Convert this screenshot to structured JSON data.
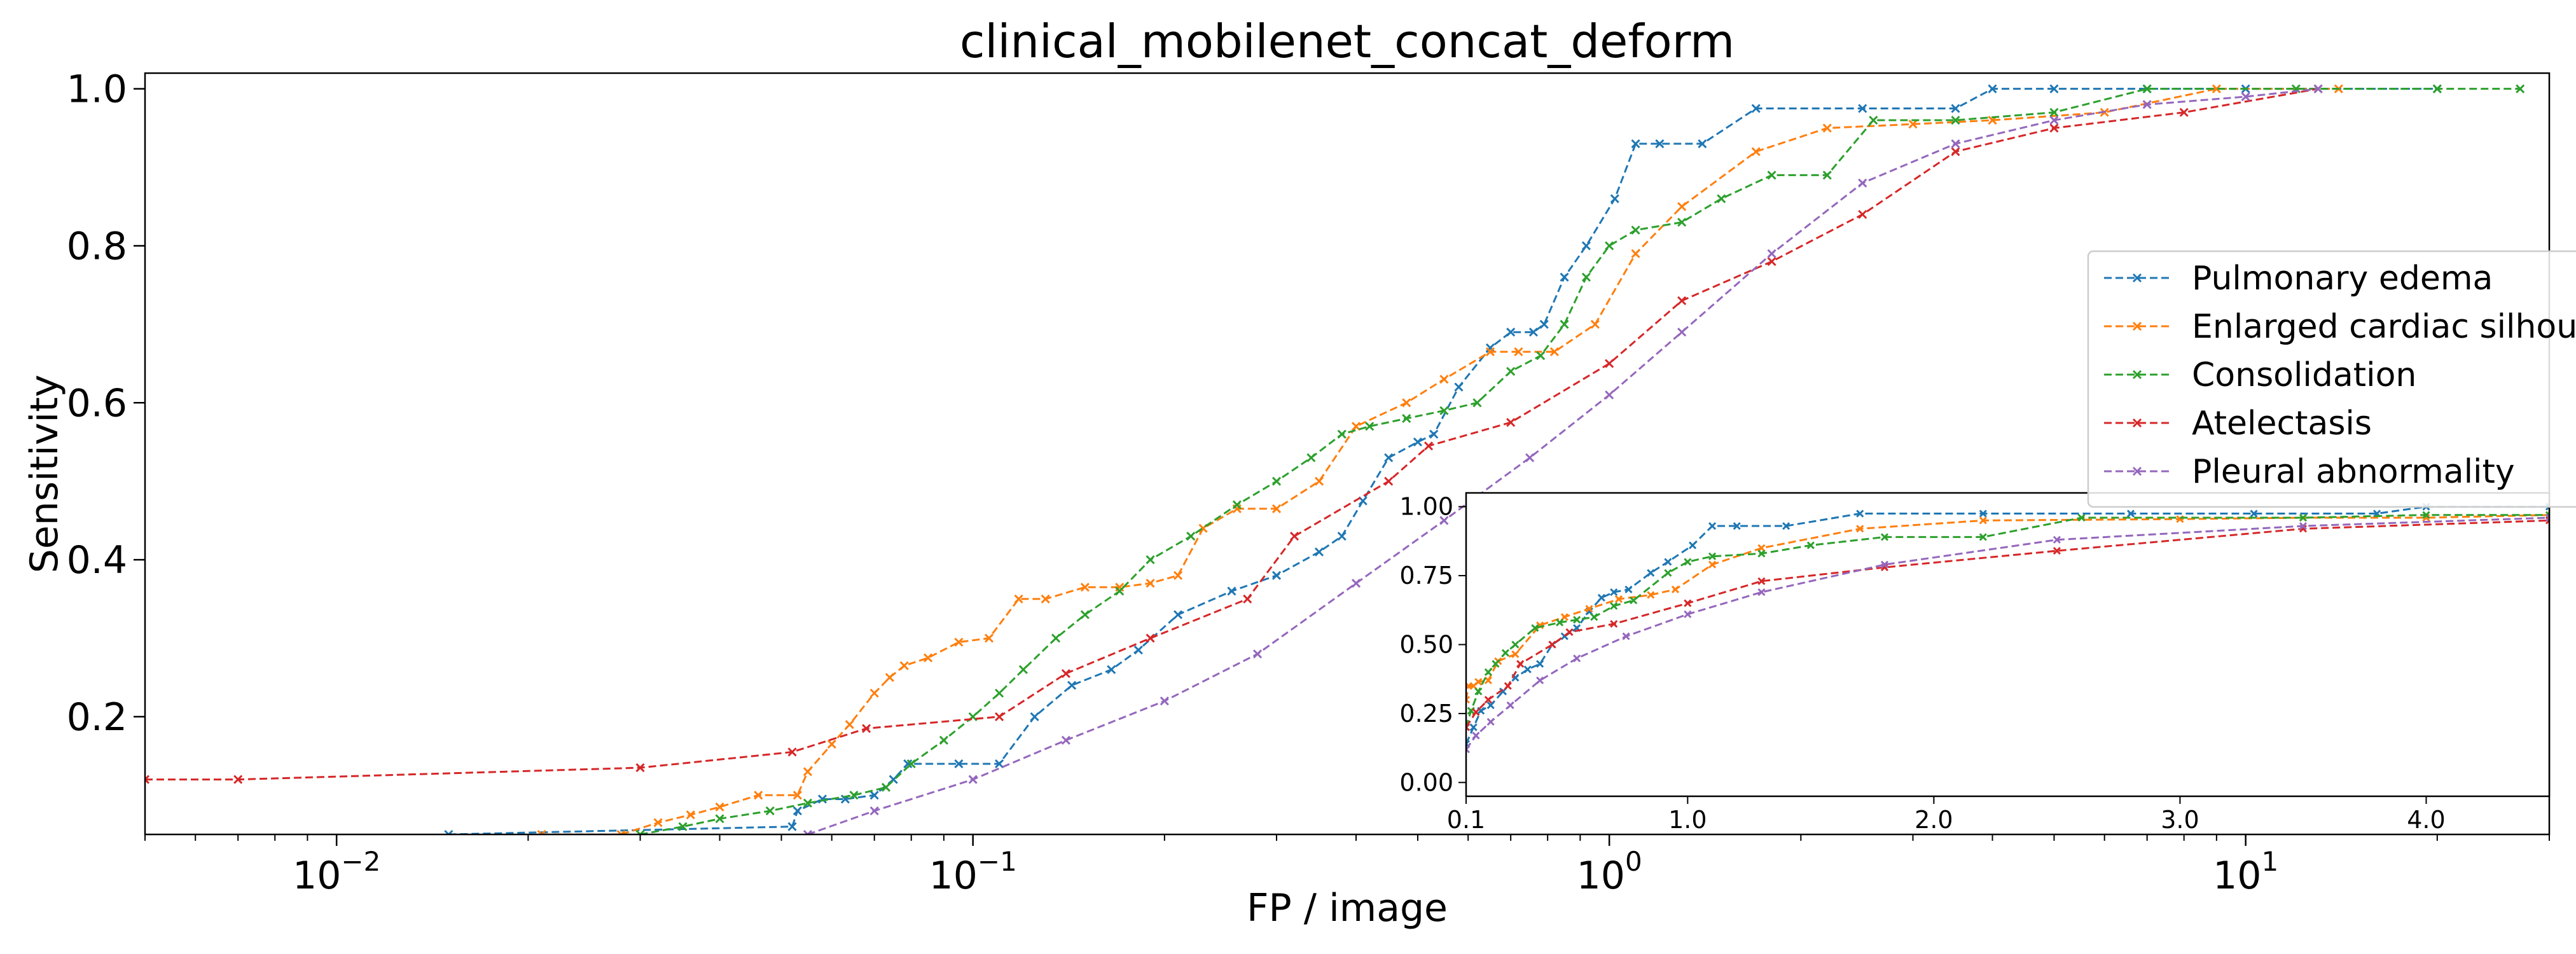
{
  "chart_data": [
    {
      "type": "line",
      "title": "clinical_mobilenet_concat_deform",
      "xlabel": "FP / image",
      "ylabel": "Sensitivity",
      "xscale": "log",
      "xlim": [
        0.005,
        30
      ],
      "ylim": [
        0.05,
        1.02
      ],
      "x_ticks": [
        {
          "value": 0.01,
          "base": "10",
          "exp": "−2"
        },
        {
          "value": 0.1,
          "base": "10",
          "exp": "−1"
        },
        {
          "value": 1,
          "base": "10",
          "exp": "0"
        },
        {
          "value": 10,
          "base": "10",
          "exp": "1"
        }
      ],
      "y_ticks": [
        "0.2",
        "0.4",
        "0.6",
        "0.8",
        "1.0"
      ],
      "legend_position": "right",
      "series": [
        {
          "name": "Pulmonary edema",
          "color": "#1f77b4",
          "x": [
            0.015,
            0.052,
            0.053,
            0.058,
            0.063,
            0.07,
            0.075,
            0.079,
            0.095,
            0.11,
            0.125,
            0.143,
            0.165,
            0.182,
            0.21,
            0.255,
            0.3,
            0.35,
            0.38,
            0.41,
            0.45,
            0.5,
            0.53,
            0.58,
            0.65,
            0.7,
            0.76,
            0.79,
            0.85,
            0.92,
            1.02,
            1.1,
            1.2,
            1.4,
            1.7,
            2.5,
            3.5,
            4.0,
            5.0,
            7.0,
            10.0,
            20.0
          ],
          "y": [
            0.05,
            0.06,
            0.08,
            0.095,
            0.095,
            0.1,
            0.12,
            0.14,
            0.14,
            0.14,
            0.2,
            0.24,
            0.26,
            0.285,
            0.33,
            0.36,
            0.38,
            0.41,
            0.43,
            0.475,
            0.53,
            0.55,
            0.56,
            0.62,
            0.67,
            0.69,
            0.69,
            0.7,
            0.76,
            0.8,
            0.86,
            0.93,
            0.93,
            0.93,
            0.975,
            0.975,
            0.975,
            1.0,
            1.0,
            1.0,
            1.0,
            1.0
          ]
        },
        {
          "name": "Enlarged cardiac silhouette",
          "color": "#ff7f0e",
          "x": [
            0.021,
            0.028,
            0.032,
            0.036,
            0.04,
            0.046,
            0.053,
            0.055,
            0.06,
            0.064,
            0.07,
            0.074,
            0.078,
            0.085,
            0.095,
            0.106,
            0.118,
            0.13,
            0.15,
            0.17,
            0.19,
            0.21,
            0.23,
            0.26,
            0.3,
            0.35,
            0.4,
            0.48,
            0.55,
            0.65,
            0.72,
            0.82,
            0.95,
            1.1,
            1.3,
            1.7,
            2.2,
            3.0,
            4.0,
            6.0,
            9.0,
            14.0
          ],
          "y": [
            0.05,
            0.05,
            0.065,
            0.075,
            0.085,
            0.1,
            0.1,
            0.13,
            0.165,
            0.19,
            0.23,
            0.25,
            0.265,
            0.275,
            0.295,
            0.3,
            0.35,
            0.35,
            0.365,
            0.365,
            0.37,
            0.38,
            0.44,
            0.465,
            0.465,
            0.5,
            0.57,
            0.6,
            0.63,
            0.665,
            0.665,
            0.665,
            0.7,
            0.79,
            0.85,
            0.92,
            0.95,
            0.955,
            0.96,
            0.97,
            1.0,
            1.0
          ]
        },
        {
          "name": "Consolidation",
          "color": "#2ca02c",
          "x": [
            0.03,
            0.035,
            0.04,
            0.048,
            0.055,
            0.065,
            0.073,
            0.08,
            0.09,
            0.1,
            0.11,
            0.12,
            0.135,
            0.15,
            0.17,
            0.19,
            0.22,
            0.26,
            0.3,
            0.34,
            0.38,
            0.42,
            0.48,
            0.55,
            0.62,
            0.7,
            0.78,
            0.85,
            0.92,
            1.0,
            1.1,
            1.3,
            1.5,
            1.8,
            2.2,
            2.6,
            3.5,
            5.0,
            7.0,
            12.0,
            20.0,
            27.0
          ],
          "y": [
            0.05,
            0.06,
            0.07,
            0.08,
            0.09,
            0.1,
            0.11,
            0.14,
            0.17,
            0.2,
            0.23,
            0.26,
            0.3,
            0.33,
            0.36,
            0.4,
            0.43,
            0.47,
            0.5,
            0.53,
            0.56,
            0.57,
            0.58,
            0.59,
            0.6,
            0.64,
            0.66,
            0.7,
            0.76,
            0.8,
            0.82,
            0.83,
            0.86,
            0.89,
            0.89,
            0.96,
            0.96,
            0.97,
            1.0,
            1.0,
            1.0,
            1.0
          ]
        },
        {
          "name": "Atelectasis",
          "color": "#d62728",
          "x": [
            0.005,
            0.007,
            0.03,
            0.052,
            0.068,
            0.11,
            0.14,
            0.19,
            0.27,
            0.32,
            0.45,
            0.52,
            0.7,
            1.0,
            1.3,
            1.8,
            2.5,
            3.5,
            5.0,
            8.0,
            13.0
          ],
          "y": [
            0.12,
            0.12,
            0.135,
            0.155,
            0.185,
            0.2,
            0.255,
            0.3,
            0.35,
            0.43,
            0.5,
            0.545,
            0.575,
            0.65,
            0.73,
            0.78,
            0.84,
            0.92,
            0.95,
            0.97,
            1.0
          ]
        },
        {
          "name": "Pleural abnormality",
          "color": "#9467bd",
          "x": [
            0.055,
            0.07,
            0.1,
            0.14,
            0.2,
            0.28,
            0.4,
            0.55,
            0.75,
            1.0,
            1.3,
            1.8,
            2.5,
            3.5,
            5.0,
            7.0,
            10.0,
            13.0
          ],
          "y": [
            0.05,
            0.08,
            0.12,
            0.17,
            0.22,
            0.28,
            0.37,
            0.45,
            0.53,
            0.61,
            0.69,
            0.79,
            0.88,
            0.93,
            0.96,
            0.98,
            0.99,
            1.0
          ]
        }
      ]
    },
    {
      "type": "line",
      "title": "",
      "xlabel": "",
      "ylabel": "",
      "xscale": "linear",
      "xlim": [
        0.1,
        4.5
      ],
      "ylim": [
        -0.05,
        1.05
      ],
      "x_ticks": [
        {
          "value": 0.1,
          "label": "0.1"
        },
        {
          "value": 1.0,
          "label": "1.0"
        },
        {
          "value": 2.0,
          "label": "2.0"
        },
        {
          "value": 3.0,
          "label": "3.0"
        },
        {
          "value": 4.0,
          "label": "4.0"
        }
      ],
      "y_ticks": [
        {
          "value": 0.0,
          "label": "0.00"
        },
        {
          "value": 0.25,
          "label": "0.25"
        },
        {
          "value": 0.5,
          "label": "0.50"
        },
        {
          "value": 0.75,
          "label": "0.75"
        },
        {
          "value": 1.0,
          "label": "1.00"
        }
      ],
      "series": [
        {
          "name": "Pulmonary edema",
          "color": "#1f77b4",
          "x": [
            0.1,
            0.13,
            0.16,
            0.2,
            0.25,
            0.3,
            0.35,
            0.4,
            0.45,
            0.5,
            0.55,
            0.6,
            0.65,
            0.7,
            0.76,
            0.85,
            0.92,
            1.02,
            1.1,
            1.2,
            1.4,
            1.7,
            2.2,
            2.8,
            3.3,
            3.8,
            4.0,
            4.5
          ],
          "y": [
            0.14,
            0.2,
            0.26,
            0.28,
            0.33,
            0.38,
            0.41,
            0.43,
            0.5,
            0.53,
            0.56,
            0.62,
            0.67,
            0.69,
            0.7,
            0.76,
            0.8,
            0.86,
            0.93,
            0.93,
            0.93,
            0.975,
            0.975,
            0.975,
            0.975,
            0.975,
            1.0,
            1.0
          ]
        },
        {
          "name": "Enlarged cardiac silhouette",
          "color": "#ff7f0e",
          "x": [
            0.1,
            0.11,
            0.13,
            0.15,
            0.19,
            0.23,
            0.3,
            0.4,
            0.5,
            0.6,
            0.72,
            0.85,
            0.95,
            1.1,
            1.3,
            1.7,
            2.2,
            3.0,
            3.5,
            4.0,
            4.5
          ],
          "y": [
            0.3,
            0.35,
            0.35,
            0.365,
            0.37,
            0.44,
            0.465,
            0.57,
            0.6,
            0.63,
            0.665,
            0.68,
            0.7,
            0.79,
            0.85,
            0.92,
            0.95,
            0.955,
            0.96,
            0.96,
            0.97
          ]
        },
        {
          "name": "Consolidation",
          "color": "#2ca02c",
          "x": [
            0.1,
            0.12,
            0.15,
            0.19,
            0.22,
            0.26,
            0.3,
            0.38,
            0.48,
            0.55,
            0.62,
            0.7,
            0.78,
            0.92,
            1.0,
            1.1,
            1.3,
            1.5,
            1.8,
            2.2,
            2.6,
            3.5,
            4.0,
            4.5
          ],
          "y": [
            0.2,
            0.26,
            0.33,
            0.4,
            0.43,
            0.47,
            0.5,
            0.56,
            0.58,
            0.59,
            0.6,
            0.64,
            0.66,
            0.76,
            0.8,
            0.82,
            0.83,
            0.86,
            0.89,
            0.89,
            0.96,
            0.96,
            0.97,
            0.97
          ]
        },
        {
          "name": "Atelectasis",
          "color": "#d62728",
          "x": [
            0.1,
            0.14,
            0.19,
            0.27,
            0.32,
            0.45,
            0.52,
            0.7,
            1.0,
            1.3,
            1.8,
            2.5,
            3.5,
            4.5
          ],
          "y": [
            0.2,
            0.255,
            0.3,
            0.35,
            0.43,
            0.5,
            0.545,
            0.575,
            0.65,
            0.73,
            0.78,
            0.84,
            0.92,
            0.95
          ]
        },
        {
          "name": "Pleural abnormality",
          "color": "#9467bd",
          "x": [
            0.1,
            0.14,
            0.2,
            0.28,
            0.4,
            0.55,
            0.75,
            1.0,
            1.3,
            1.8,
            2.5,
            3.5,
            4.5
          ],
          "y": [
            0.12,
            0.17,
            0.22,
            0.28,
            0.37,
            0.45,
            0.53,
            0.61,
            0.69,
            0.79,
            0.88,
            0.93,
            0.96
          ]
        }
      ]
    }
  ]
}
